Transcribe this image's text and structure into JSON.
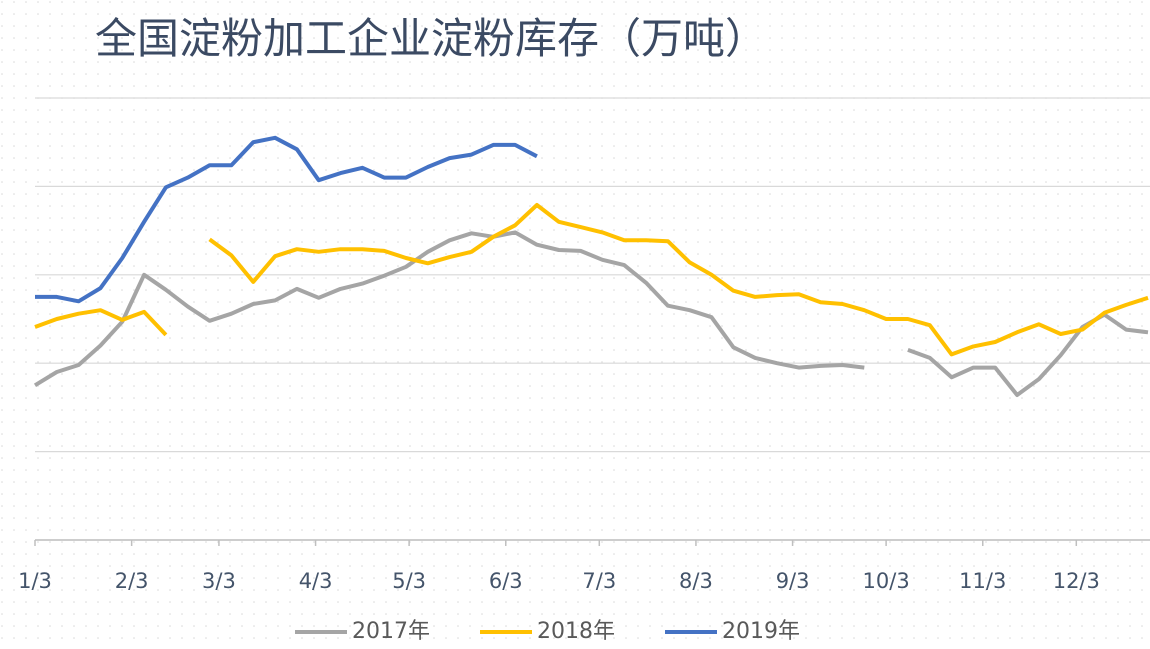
{
  "chart_data": {
    "type": "line",
    "title": "全国淀粉加工企业淀粉库存（万吨）",
    "x": [
      3,
      10,
      17,
      24,
      31,
      38,
      45,
      52,
      59,
      66,
      73,
      80,
      87,
      94,
      101,
      108,
      115,
      122,
      129,
      136,
      143,
      150,
      157,
      164,
      171,
      178,
      185,
      192,
      199,
      206,
      213,
      220,
      227,
      234,
      241,
      248,
      255,
      262,
      269,
      276,
      283,
      290,
      297,
      304,
      311,
      318,
      325,
      332,
      339,
      346,
      353,
      360
    ],
    "xlim": [
      3,
      360
    ],
    "xticks": [
      {
        "value": 3,
        "label": "1/3"
      },
      {
        "value": 34,
        "label": "2/3"
      },
      {
        "value": 62,
        "label": "3/3"
      },
      {
        "value": 93,
        "label": "4/3"
      },
      {
        "value": 123,
        "label": "5/3"
      },
      {
        "value": 154,
        "label": "6/3"
      },
      {
        "value": 184,
        "label": "7/3"
      },
      {
        "value": 215,
        "label": "8/3"
      },
      {
        "value": 246,
        "label": "9/3"
      },
      {
        "value": 276,
        "label": "10/3"
      },
      {
        "value": 307,
        "label": "11/3"
      },
      {
        "value": 337,
        "label": "12/3"
      }
    ],
    "ylim": [
      0,
      5
    ],
    "yticks": [
      0,
      1,
      2,
      3,
      4,
      5
    ],
    "show_ytick_labels": false,
    "grid": true,
    "legend": "bottom",
    "series": [
      {
        "name": "2017年",
        "color": "#a5a5a5",
        "values": [
          1.75,
          1.9,
          1.98,
          2.2,
          2.47,
          3.0,
          2.83,
          2.64,
          2.48,
          2.56,
          2.67,
          2.71,
          2.84,
          2.74,
          2.84,
          2.9,
          2.99,
          3.09,
          3.26,
          3.39,
          3.47,
          3.43,
          3.48,
          3.34,
          3.28,
          3.27,
          3.17,
          3.11,
          2.91,
          2.65,
          2.6,
          2.52,
          2.18,
          2.06,
          2.0,
          1.95,
          1.97,
          1.98,
          1.95,
          null,
          2.15,
          2.06,
          1.84,
          1.95,
          1.95,
          1.64,
          1.82,
          2.09,
          2.41,
          2.55,
          2.38,
          2.35
        ]
      },
      {
        "name": "2018年",
        "color": "#ffc000",
        "values": [
          2.41,
          2.5,
          2.56,
          2.6,
          2.49,
          2.58,
          2.32,
          null,
          3.4,
          3.22,
          2.92,
          3.21,
          3.29,
          3.26,
          3.29,
          3.29,
          3.27,
          3.19,
          3.13,
          3.2,
          3.26,
          3.43,
          3.56,
          3.79,
          3.6,
          3.54,
          3.48,
          3.39,
          3.39,
          3.38,
          3.14,
          3.0,
          2.82,
          2.75,
          2.77,
          2.78,
          2.69,
          2.67,
          2.6,
          2.5,
          2.5,
          2.43,
          2.1,
          2.19,
          2.24,
          2.35,
          2.44,
          2.33,
          2.38,
          2.57,
          2.66,
          2.74
        ]
      },
      {
        "name": "2019年",
        "color": "#4472c4",
        "values": [
          2.75,
          2.75,
          2.7,
          2.85,
          3.19,
          3.6,
          3.99,
          4.1,
          4.24,
          4.24,
          4.5,
          4.55,
          4.42,
          4.07,
          4.15,
          4.21,
          4.1,
          4.1,
          4.22,
          4.32,
          4.36,
          4.47,
          4.47,
          4.34,
          null,
          null,
          null,
          null,
          null,
          null,
          null,
          null,
          null,
          null,
          null,
          null,
          null,
          null,
          null,
          null,
          null,
          null,
          null,
          null,
          null,
          null,
          null,
          null,
          null,
          null,
          null,
          null
        ]
      }
    ]
  }
}
